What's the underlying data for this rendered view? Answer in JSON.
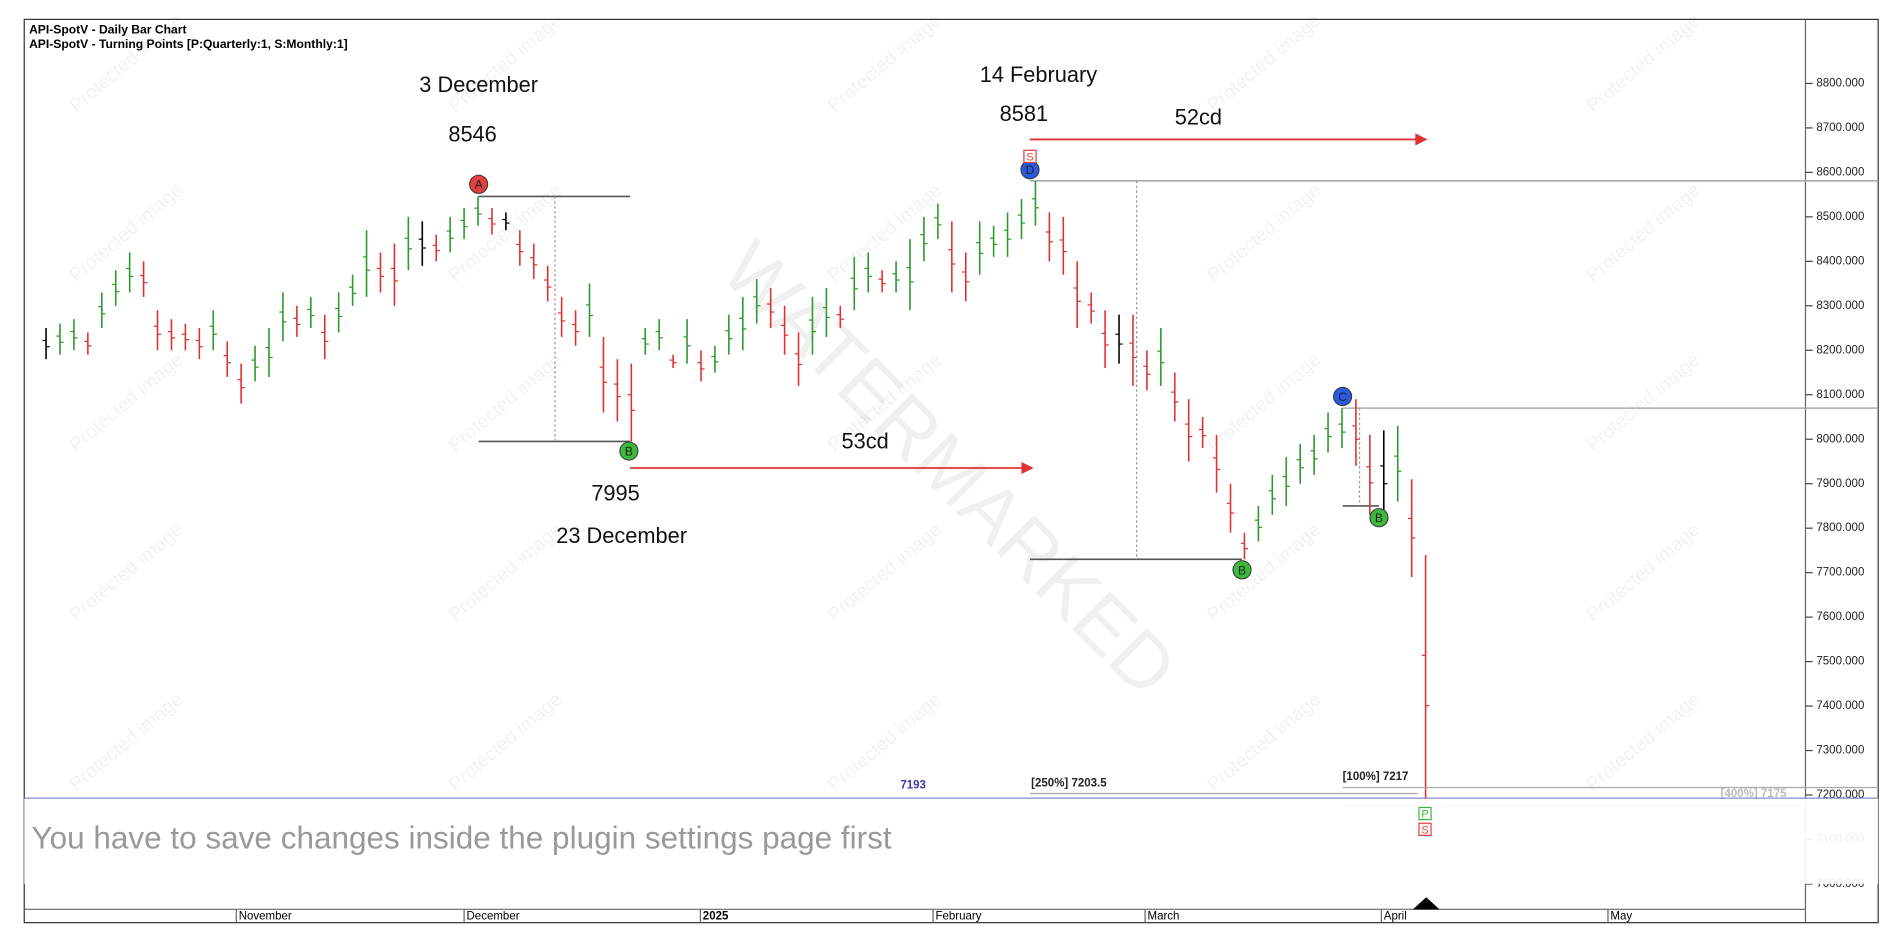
{
  "chart_data": {
    "type": "ohlc",
    "header": [
      "API-SpotV - Daily Bar Chart",
      "API-SpotV - Turning Points [P:Quarterly:1, S:Monthly:1]"
    ],
    "high": [
      8250,
      8260,
      8270,
      8240,
      8330,
      8380,
      8420,
      8400,
      8290,
      8270,
      8260,
      8250,
      8290,
      8220,
      8170,
      8210,
      8250,
      8330,
      8300,
      8320,
      8280,
      8330,
      8370,
      8470,
      8420,
      8440,
      8500,
      8490,
      8460,
      8500,
      8520,
      8546,
      8520,
      8510,
      8470,
      8440,
      8390,
      8320,
      8290,
      8350,
      8230,
      8180,
      8170,
      8250,
      8270,
      8190,
      8270,
      8200,
      8210,
      8280,
      8320,
      8360,
      8340,
      8300,
      8240,
      8320,
      8340,
      8300,
      8410,
      8420,
      8380,
      8400,
      8450,
      8500,
      8530,
      8490,
      8420,
      8490,
      8480,
      8510,
      8540,
      8581,
      8510,
      8500,
      8400,
      8330,
      8290,
      8280,
      8280,
      8200,
      8250,
      8150,
      8090,
      8050,
      8010,
      7900,
      7790,
      7850,
      7920,
      7960,
      7990,
      8010,
      8060,
      8070,
      8090,
      8010,
      8020,
      8030,
      7910,
      7740
    ],
    "low": [
      8180,
      8190,
      8200,
      8190,
      8250,
      8300,
      8330,
      8320,
      8200,
      8200,
      8200,
      8180,
      8200,
      8140,
      8080,
      8130,
      8140,
      8220,
      8230,
      8250,
      8180,
      8240,
      8300,
      8320,
      8330,
      8300,
      8380,
      8390,
      8400,
      8420,
      8450,
      8480,
      8460,
      8470,
      8390,
      8360,
      8310,
      8230,
      8210,
      8230,
      8060,
      8040,
      7995,
      8190,
      8200,
      8160,
      8170,
      8130,
      8150,
      8190,
      8200,
      8260,
      8250,
      8190,
      8120,
      8190,
      8230,
      8250,
      8290,
      8330,
      8330,
      8330,
      8290,
      8400,
      8450,
      8330,
      8310,
      8370,
      8410,
      8410,
      8450,
      8480,
      8400,
      8370,
      8250,
      8260,
      8160,
      8170,
      8120,
      8110,
      8120,
      8040,
      7950,
      7980,
      7880,
      7790,
      7730,
      7770,
      7830,
      7850,
      7900,
      7920,
      7970,
      7980,
      7940,
      7830,
      7820,
      7860,
      7690,
      7175
    ],
    "ylim": [
      6943,
      8944
    ],
    "yticks": [
      {
        "value": 7000,
        "label": "7000.000"
      },
      {
        "value": 7100,
        "label": "7100.000"
      },
      {
        "value": 7200,
        "label": "7200.000"
      },
      {
        "value": 7300,
        "label": "7300.000"
      },
      {
        "value": 7400,
        "label": "7400.000"
      },
      {
        "value": 7500,
        "label": "7500.000"
      },
      {
        "value": 7600,
        "label": "7600.000"
      },
      {
        "value": 7700,
        "label": "7700.000"
      },
      {
        "value": 7800,
        "label": "7800.000"
      },
      {
        "value": 7900,
        "label": "7900.000"
      },
      {
        "value": 8000,
        "label": "8000.000"
      },
      {
        "value": 8100,
        "label": "8100.000"
      },
      {
        "value": 8200,
        "label": "8200.000"
      },
      {
        "value": 8300,
        "label": "8300.000"
      },
      {
        "value": 8400,
        "label": "8400.000"
      },
      {
        "value": 8500,
        "label": "8500.000"
      },
      {
        "value": 8600,
        "label": "8600.000"
      },
      {
        "value": 8700,
        "label": "8700.000"
      },
      {
        "value": 8800,
        "label": "8800.000"
      }
    ],
    "x_axis_labels": [
      "November",
      "December",
      "2025",
      "February",
      "March",
      "April",
      "May"
    ],
    "annotations": [
      "3 December",
      "8546",
      "14 February",
      "8581",
      "52cd",
      "53cd",
      "7995",
      "23 December"
    ],
    "levels": [
      8546,
      7995,
      8581,
      7730,
      8070,
      7850
    ],
    "level_labels": [
      {
        "value": 7203.5,
        "label": "[250%] 7203.5"
      },
      {
        "value": 7217,
        "label": "[100%] 7217"
      },
      {
        "value": 7175,
        "label": "[400%] 7175"
      },
      {
        "value": 7193,
        "label": "7193"
      }
    ],
    "turning_points": [
      "A",
      "B",
      "D",
      "S",
      "B",
      "C",
      "B",
      "P",
      "S"
    ],
    "watermark": "WATERMARKED",
    "protected": "Protected image",
    "notice": "You have to save changes inside the plugin settings page first"
  }
}
